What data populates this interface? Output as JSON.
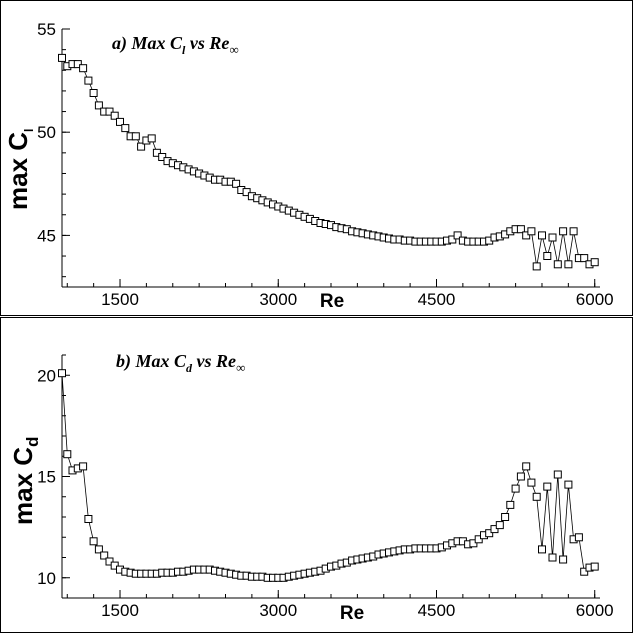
{
  "chart_data": [
    {
      "type": "line",
      "title": {
        "prefix": "a) Max C",
        "sub": "l",
        "mid": " vs Re",
        "inf": "∞"
      },
      "ylabel": {
        "main": "max C",
        "sub": "l"
      },
      "xlabel": "Re",
      "xlim": [
        950,
        6050
      ],
      "ylim": [
        42.5,
        55
      ],
      "xticks": [
        1500,
        3000,
        4500,
        6000
      ],
      "yticks": [
        45,
        50,
        55
      ],
      "marker": "square",
      "x": [
        950,
        1000,
        1050,
        1100,
        1150,
        1200,
        1250,
        1300,
        1350,
        1400,
        1450,
        1500,
        1550,
        1600,
        1650,
        1700,
        1750,
        1800,
        1850,
        1900,
        1950,
        2000,
        2050,
        2100,
        2150,
        2200,
        2250,
        2300,
        2350,
        2400,
        2450,
        2500,
        2550,
        2600,
        2650,
        2700,
        2750,
        2800,
        2850,
        2900,
        2950,
        3000,
        3050,
        3100,
        3150,
        3200,
        3250,
        3300,
        3350,
        3400,
        3450,
        3500,
        3550,
        3600,
        3650,
        3700,
        3750,
        3800,
        3850,
        3900,
        3950,
        4000,
        4050,
        4100,
        4150,
        4200,
        4250,
        4300,
        4350,
        4400,
        4450,
        4500,
        4550,
        4600,
        4650,
        4700,
        4750,
        4800,
        4850,
        4900,
        4950,
        5000,
        5050,
        5100,
        5150,
        5200,
        5250,
        5300,
        5350,
        5400,
        5450,
        5500,
        5550,
        5600,
        5650,
        5700,
        5750,
        5800,
        5850,
        5900,
        5950,
        6000
      ],
      "y": [
        53.6,
        53.2,
        53.3,
        53.3,
        53.1,
        52.5,
        51.9,
        51.3,
        51.0,
        51.0,
        50.8,
        50.5,
        50.2,
        49.8,
        49.8,
        49.3,
        49.6,
        49.7,
        49.0,
        48.8,
        48.6,
        48.5,
        48.4,
        48.3,
        48.2,
        48.1,
        48.0,
        47.9,
        47.8,
        47.7,
        47.7,
        47.6,
        47.6,
        47.5,
        47.2,
        47.1,
        46.9,
        46.8,
        46.7,
        46.6,
        46.5,
        46.4,
        46.3,
        46.2,
        46.1,
        46.0,
        45.9,
        45.8,
        45.7,
        45.6,
        45.55,
        45.5,
        45.4,
        45.35,
        45.3,
        45.2,
        45.15,
        45.1,
        45.05,
        45.0,
        44.95,
        44.9,
        44.85,
        44.8,
        44.8,
        44.75,
        44.75,
        44.7,
        44.7,
        44.7,
        44.7,
        44.7,
        44.7,
        44.75,
        44.8,
        45.0,
        44.75,
        44.7,
        44.7,
        44.7,
        44.7,
        44.75,
        44.9,
        44.95,
        45.05,
        45.2,
        45.3,
        45.3,
        45.0,
        45.2,
        43.5,
        45.0,
        44.0,
        44.9,
        43.6,
        45.2,
        43.6,
        45.2,
        43.9,
        43.9,
        43.6,
        43.7
      ]
    },
    {
      "type": "line",
      "title": {
        "prefix": "b) Max C",
        "sub": "d",
        "mid": " vs Re",
        "inf": "∞"
      },
      "ylabel": {
        "main": "max C",
        "sub": "d"
      },
      "xlabel": "Re",
      "xlim": [
        950,
        6050
      ],
      "ylim": [
        9,
        21
      ],
      "xticks": [
        1500,
        3000,
        4500,
        6000
      ],
      "yticks": [
        10,
        15,
        20
      ],
      "marker": "square",
      "x": [
        950,
        1000,
        1050,
        1100,
        1150,
        1200,
        1250,
        1300,
        1350,
        1400,
        1450,
        1500,
        1550,
        1600,
        1650,
        1700,
        1750,
        1800,
        1850,
        1900,
        1950,
        2000,
        2050,
        2100,
        2150,
        2200,
        2250,
        2300,
        2350,
        2400,
        2450,
        2500,
        2550,
        2600,
        2650,
        2700,
        2750,
        2800,
        2850,
        2900,
        2950,
        3000,
        3050,
        3100,
        3150,
        3200,
        3250,
        3300,
        3350,
        3400,
        3450,
        3500,
        3550,
        3600,
        3650,
        3700,
        3750,
        3800,
        3850,
        3900,
        3950,
        4000,
        4050,
        4100,
        4150,
        4200,
        4250,
        4300,
        4350,
        4400,
        4450,
        4500,
        4550,
        4600,
        4650,
        4700,
        4750,
        4800,
        4850,
        4900,
        4950,
        5000,
        5050,
        5100,
        5150,
        5200,
        5250,
        5300,
        5350,
        5400,
        5450,
        5500,
        5550,
        5600,
        5650,
        5700,
        5750,
        5800,
        5850,
        5900,
        5950,
        6000
      ],
      "y": [
        20.1,
        16.1,
        15.3,
        15.4,
        15.5,
        12.9,
        11.8,
        11.4,
        11.1,
        10.8,
        10.6,
        10.4,
        10.3,
        10.25,
        10.2,
        10.2,
        10.2,
        10.2,
        10.2,
        10.25,
        10.25,
        10.25,
        10.3,
        10.3,
        10.35,
        10.4,
        10.4,
        10.4,
        10.4,
        10.35,
        10.3,
        10.25,
        10.2,
        10.15,
        10.1,
        10.1,
        10.05,
        10.05,
        10.05,
        10.0,
        10.0,
        10.0,
        10.0,
        10.05,
        10.1,
        10.15,
        10.2,
        10.25,
        10.3,
        10.35,
        10.45,
        10.55,
        10.6,
        10.7,
        10.75,
        10.85,
        10.9,
        10.95,
        11.0,
        11.05,
        11.15,
        11.2,
        11.25,
        11.3,
        11.35,
        11.4,
        11.4,
        11.45,
        11.45,
        11.45,
        11.45,
        11.45,
        11.5,
        11.6,
        11.7,
        11.8,
        11.8,
        11.65,
        11.7,
        11.9,
        12.1,
        12.2,
        12.4,
        12.6,
        13.0,
        13.6,
        14.4,
        15.0,
        15.5,
        14.7,
        14.0,
        11.4,
        14.5,
        11.0,
        15.1,
        10.9,
        14.6,
        11.9,
        12.0,
        10.3,
        10.5,
        10.55
      ]
    }
  ]
}
